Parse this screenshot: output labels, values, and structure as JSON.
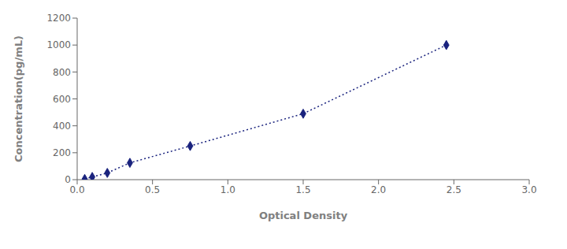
{
  "chart_data": {
    "type": "line",
    "x": [
      0.05,
      0.1,
      0.2,
      0.35,
      0.75,
      1.5,
      2.45
    ],
    "values": [
      5,
      20,
      50,
      125,
      250,
      490,
      1000
    ],
    "color": "#1a237e",
    "marker": "diamond",
    "line_style": "dotted",
    "xlabel": "Optical Density",
    "ylabel": "Concentration(pg/mL)",
    "xlim": [
      0,
      3
    ],
    "ylim": [
      0,
      1200
    ],
    "xticks": [
      {
        "value": 0,
        "label": "0.0"
      },
      0.5,
      {
        "value": 1,
        "label": "1.0"
      },
      1.5,
      {
        "value": 2,
        "label": "2.0"
      },
      2.5,
      {
        "value": 3,
        "label": "3.0"
      }
    ],
    "yticks": [
      0,
      200,
      400,
      600,
      800,
      1000,
      1200
    ],
    "grid": false
  }
}
